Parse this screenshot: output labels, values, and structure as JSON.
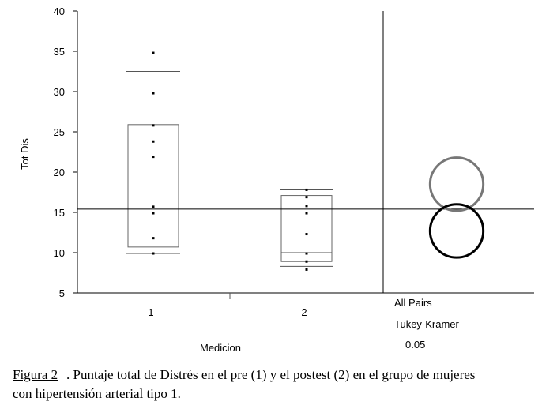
{
  "chart_data": {
    "type": "box",
    "y_label": "Tot Dis",
    "x_label": "Medicion",
    "categories": [
      "1",
      "2"
    ],
    "ylim": [
      5,
      40
    ],
    "yticks": [
      5,
      10,
      15,
      20,
      25,
      30,
      35,
      40
    ],
    "points": [
      [
        34.8,
        29.8,
        25.8,
        23.8,
        21.9,
        15.7,
        14.9,
        11.8,
        9.9
      ],
      [
        17.8,
        16.9,
        15.8,
        14.9,
        12.3,
        9.9,
        8.9,
        7.9
      ]
    ],
    "boxes": [
      {
        "q1": 10.7,
        "q3": 25.9,
        "whisker_low": 9.9,
        "whisker_high": 32.5
      },
      {
        "q1": 8.9,
        "median": 10,
        "q3": 17.1,
        "whisker_low": 8.3,
        "whisker_high": 17.8
      }
    ],
    "grand_mean": 15.4,
    "comparison_circles": [
      {
        "center": 18.5,
        "radius": 3.3,
        "color": "#777777"
      },
      {
        "center": 12.7,
        "radius": 3.3,
        "color": "#000000"
      }
    ],
    "comparison_labels": [
      "All Pairs",
      "Tukey-Kramer",
      "0.05"
    ]
  },
  "caption": {
    "figure": "Figura 2",
    "line1": ". Puntaje total de Distrés en el pre (1) y el postest (2) en el grupo de mujeres",
    "line2": "con hipertensión arterial tipo 1."
  }
}
